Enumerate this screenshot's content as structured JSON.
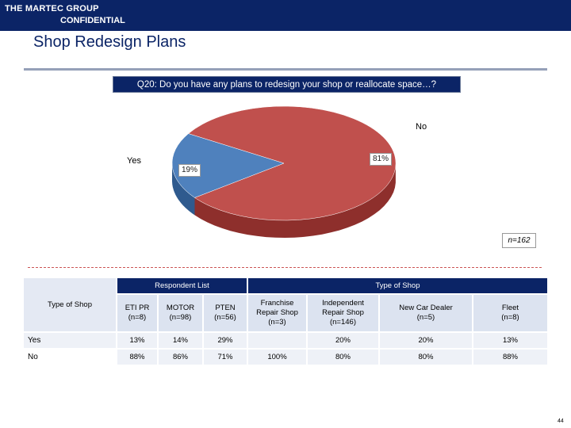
{
  "header": {
    "company": "THE MARTEC GROUP",
    "confidential": "CONFIDENTIAL"
  },
  "title": "Shop Redesign Plans",
  "question": "Q20: Do you have any plans to redesign your shop or reallocate space…?",
  "chart_data": {
    "type": "pie",
    "title": "Q20: Do you have any plans to redesign your shop or reallocate space…?",
    "slices": [
      {
        "label": "No",
        "value": 81,
        "display": "81%",
        "color": "#c0504d",
        "dark": "#8e2f2c"
      },
      {
        "label": "Yes",
        "value": 19,
        "display": "19%",
        "color": "#4f81bd",
        "dark": "#2f5a8e"
      }
    ],
    "n_label": "n=162"
  },
  "table": {
    "group_respondent": "Respondent List",
    "group_type": "Type of Shop",
    "row_header": "Type of Shop",
    "columns": [
      {
        "name": "ETI PR",
        "n": "(n=8)"
      },
      {
        "name": "MOTOR",
        "n": "(n=98)"
      },
      {
        "name": "PTEN",
        "n": "(n=56)"
      },
      {
        "name": "Franchise Repair Shop",
        "n": "(n=3)"
      },
      {
        "name": "Independent Repair Shop",
        "n": "(n=146)"
      },
      {
        "name": "New Car Dealer",
        "n": "(n=5)"
      },
      {
        "name": "Fleet",
        "n": "(n=8)"
      }
    ],
    "rows": [
      {
        "label": "Yes",
        "values": [
          "13%",
          "14%",
          "29%",
          "",
          "20%",
          "20%",
          "13%"
        ]
      },
      {
        "label": "No",
        "values": [
          "88%",
          "86%",
          "71%",
          "100%",
          "80%",
          "80%",
          "88%"
        ]
      }
    ]
  },
  "page_number": "44"
}
